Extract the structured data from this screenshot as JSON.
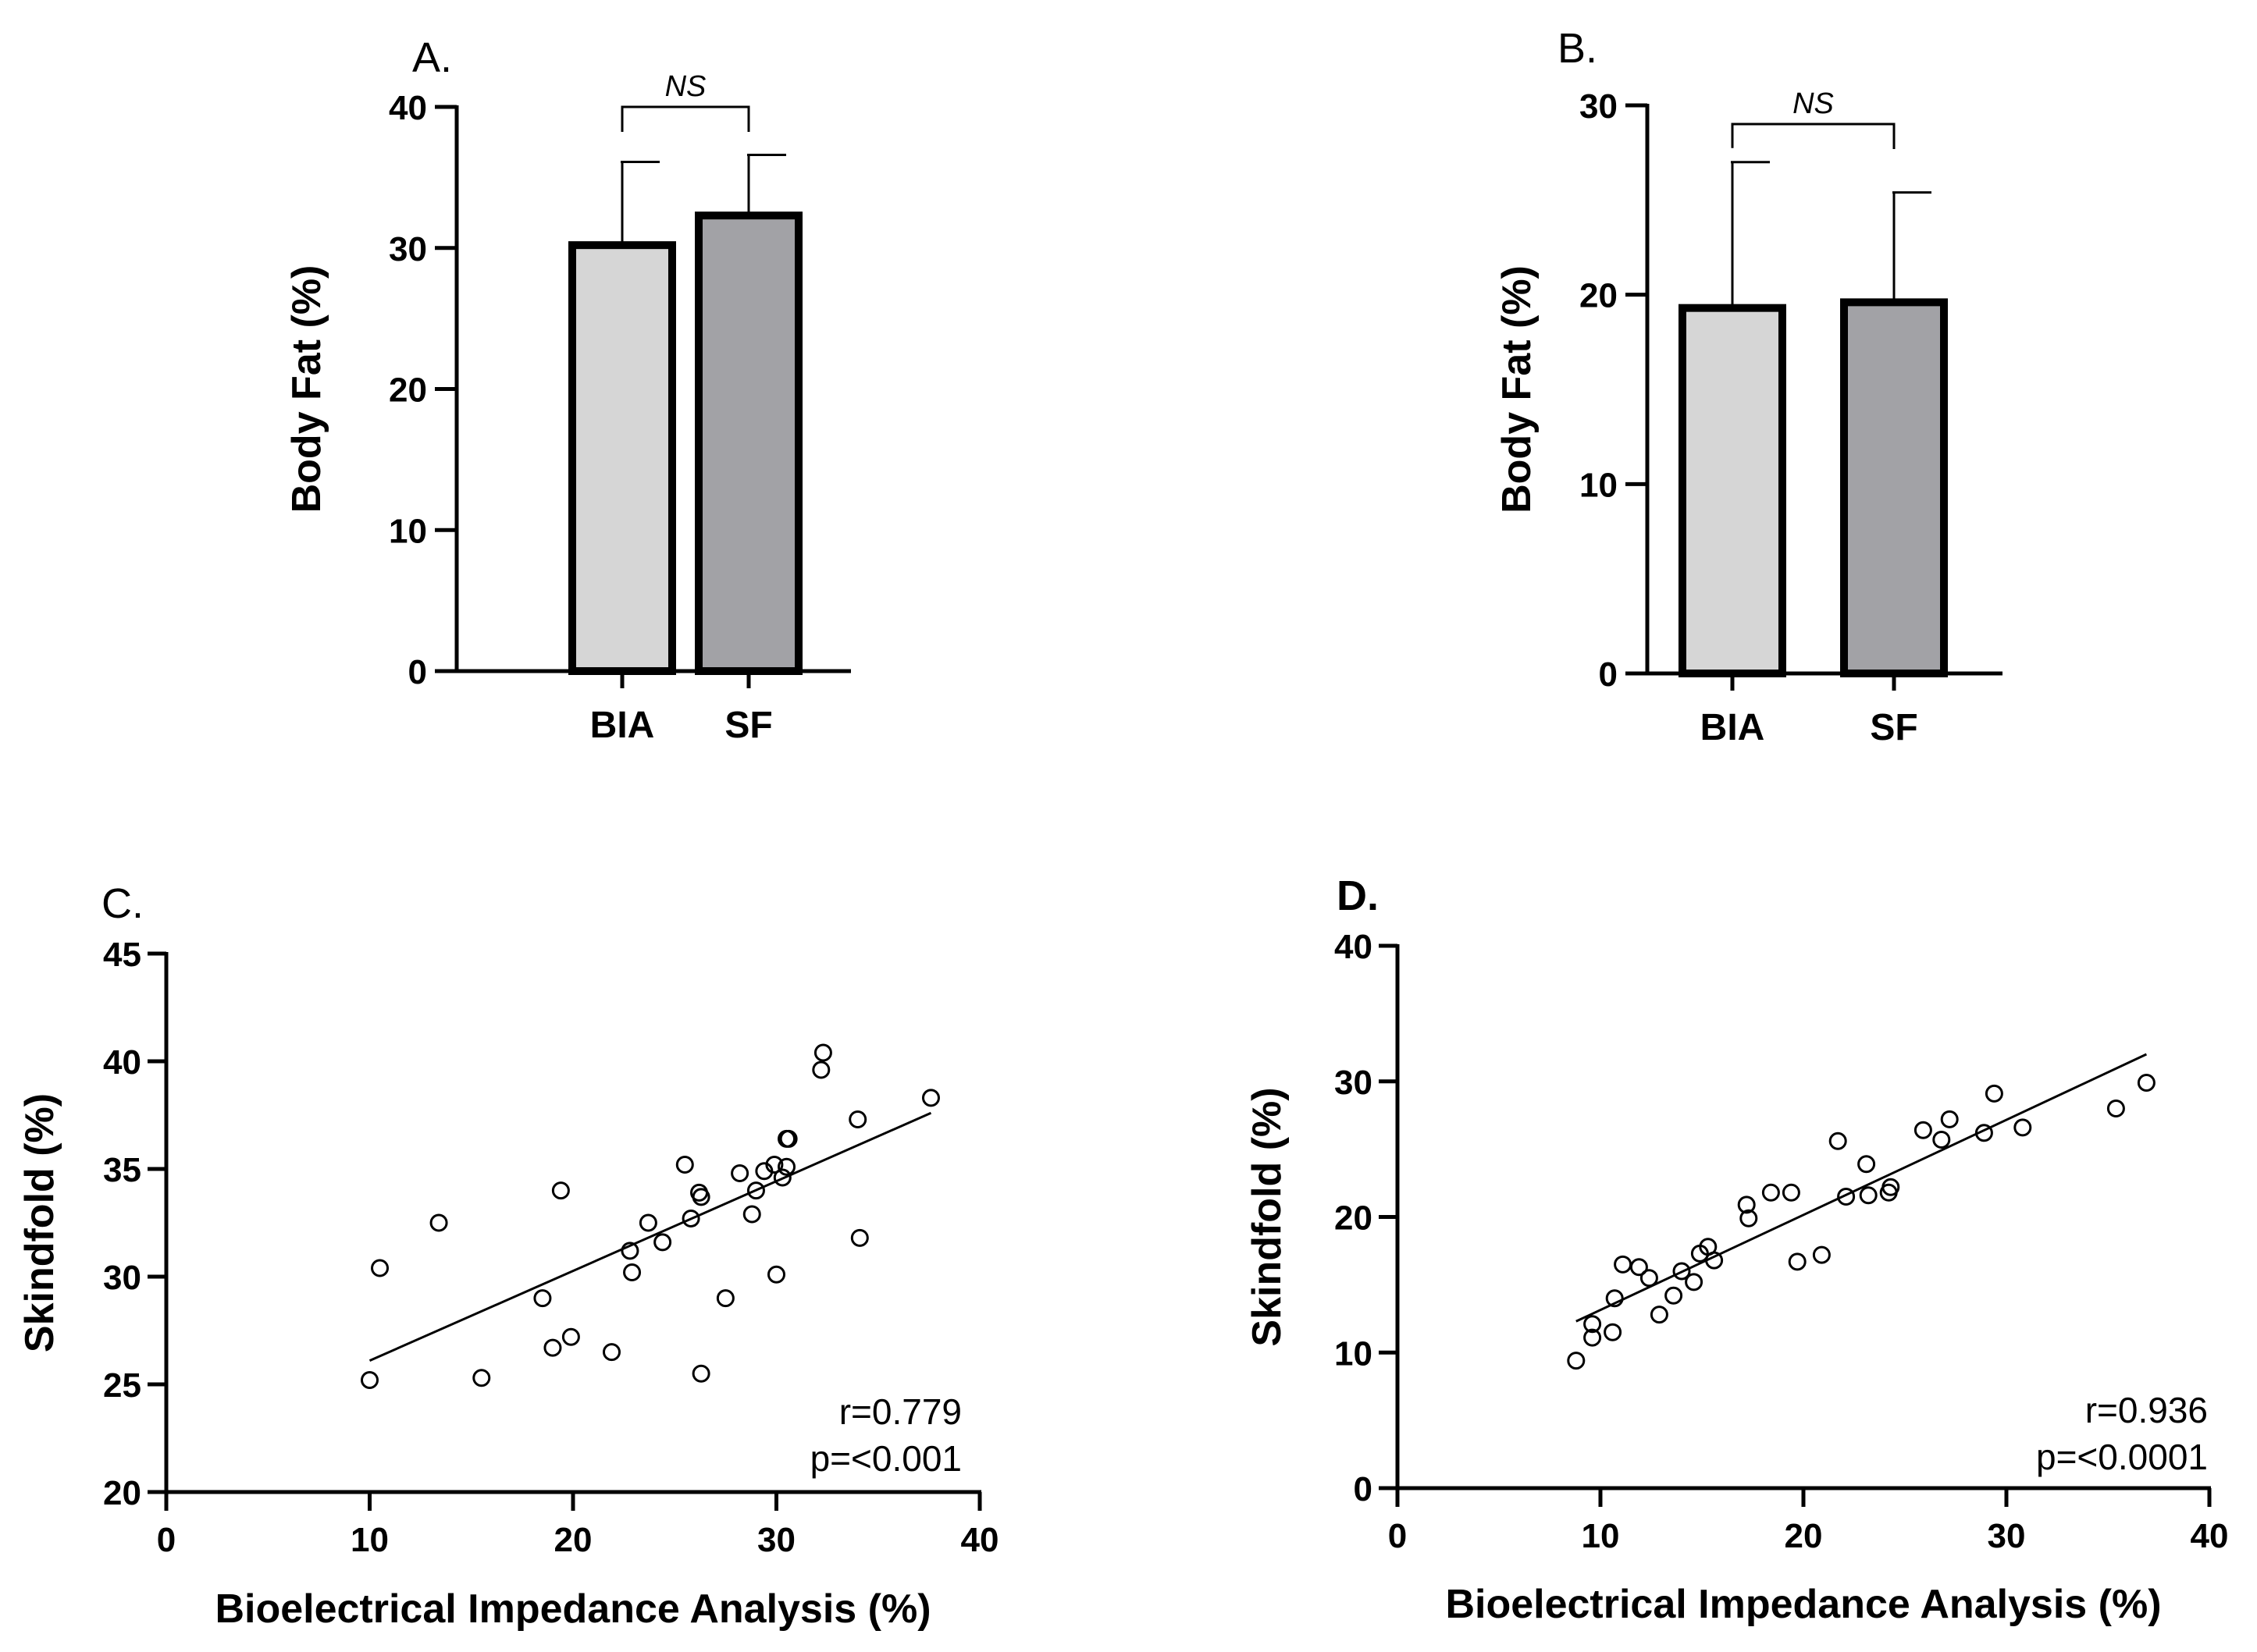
{
  "chart_data": [
    {
      "panel": "A.",
      "type": "bar",
      "categories": [
        "BIA",
        "SF"
      ],
      "values": [
        30.2,
        32.3
      ],
      "errors": [
        5.9,
        4.3
      ],
      "fill_colors": [
        "#d6d6d6",
        "#a2a2a6"
      ],
      "ylabel": "Body Fat (%)",
      "xlabel": "",
      "ylim": [
        0,
        40
      ],
      "yticks": [
        0,
        10,
        20,
        30,
        40
      ],
      "significance": "NS"
    },
    {
      "panel": "B.",
      "type": "bar",
      "categories": [
        "BIA",
        "SF"
      ],
      "values": [
        19.3,
        19.6
      ],
      "errors": [
        7.7,
        5.8
      ],
      "fill_colors": [
        "#d6d6d6",
        "#a2a2a6"
      ],
      "ylabel": "Body Fat (%)",
      "xlabel": "",
      "ylim": [
        0,
        30
      ],
      "yticks": [
        0,
        10,
        20,
        30
      ],
      "significance": "NS"
    },
    {
      "panel": "C.",
      "type": "scatter",
      "xlabel": "Bioelectrical Impedance Analysis (%)",
      "ylabel": "Skindfold (%)",
      "xlim": [
        0,
        40
      ],
      "ylim": [
        20,
        45
      ],
      "xticks": [
        0,
        10,
        20,
        30,
        40
      ],
      "yticks": [
        20,
        25,
        30,
        35,
        40,
        45
      ],
      "points": [
        [
          10.0,
          25.2
        ],
        [
          10.5,
          30.4
        ],
        [
          13.4,
          32.5
        ],
        [
          15.5,
          25.3
        ],
        [
          18.5,
          29.0
        ],
        [
          19.0,
          26.7
        ],
        [
          19.4,
          34.0
        ],
        [
          19.9,
          27.2
        ],
        [
          21.9,
          26.5
        ],
        [
          22.8,
          31.2
        ],
        [
          22.9,
          30.2
        ],
        [
          23.7,
          32.5
        ],
        [
          24.4,
          31.6
        ],
        [
          25.5,
          35.2
        ],
        [
          25.8,
          32.7
        ],
        [
          26.2,
          33.9
        ],
        [
          26.3,
          25.5
        ],
        [
          26.3,
          33.7
        ],
        [
          27.5,
          29.0
        ],
        [
          28.2,
          34.8
        ],
        [
          28.8,
          32.9
        ],
        [
          29.0,
          34.0
        ],
        [
          29.4,
          34.9
        ],
        [
          29.9,
          35.2
        ],
        [
          30.0,
          30.1
        ],
        [
          30.3,
          34.6
        ],
        [
          30.5,
          35.1
        ],
        [
          30.5,
          36.4
        ],
        [
          30.6,
          36.4
        ],
        [
          32.2,
          39.6
        ],
        [
          32.3,
          40.4
        ],
        [
          34.0,
          37.3
        ],
        [
          34.1,
          31.8
        ],
        [
          37.6,
          38.3
        ]
      ],
      "fit_line": {
        "x": [
          10.0,
          37.6
        ],
        "y": [
          26.1,
          37.6
        ]
      },
      "stats": [
        "r=0.779",
        "p=<0.001"
      ]
    },
    {
      "panel": "D.",
      "type": "scatter",
      "xlabel": "Bioelectrical Impedance Analysis (%)",
      "ylabel": "Skindfold (%)",
      "xlim": [
        0,
        40
      ],
      "ylim": [
        0,
        40
      ],
      "xticks": [
        0,
        10,
        20,
        30,
        40
      ],
      "yticks": [
        0,
        10,
        20,
        30,
        40
      ],
      "points": [
        [
          8.8,
          9.4
        ],
        [
          9.6,
          11.1
        ],
        [
          9.6,
          12.1
        ],
        [
          10.6,
          11.5
        ],
        [
          10.7,
          14.0
        ],
        [
          11.1,
          16.5
        ],
        [
          11.9,
          16.3
        ],
        [
          12.4,
          15.5
        ],
        [
          12.9,
          12.8
        ],
        [
          13.6,
          14.2
        ],
        [
          14.0,
          16.0
        ],
        [
          14.6,
          15.2
        ],
        [
          14.9,
          17.3
        ],
        [
          15.3,
          17.8
        ],
        [
          15.6,
          16.8
        ],
        [
          17.2,
          20.9
        ],
        [
          17.3,
          19.9
        ],
        [
          18.4,
          21.8
        ],
        [
          19.4,
          21.8
        ],
        [
          19.7,
          16.7
        ],
        [
          20.9,
          17.2
        ],
        [
          21.7,
          25.6
        ],
        [
          22.1,
          21.5
        ],
        [
          23.1,
          23.9
        ],
        [
          23.2,
          21.6
        ],
        [
          24.2,
          21.8
        ],
        [
          24.3,
          22.2
        ],
        [
          25.9,
          26.4
        ],
        [
          26.8,
          25.7
        ],
        [
          27.2,
          27.2
        ],
        [
          28.9,
          26.2
        ],
        [
          29.4,
          29.1
        ],
        [
          30.8,
          26.6
        ],
        [
          35.4,
          28.0
        ],
        [
          36.9,
          29.9
        ]
      ],
      "fit_line": {
        "x": [
          8.8,
          36.9
        ],
        "y": [
          12.3,
          32.0
        ]
      },
      "stats": [
        "r=0.936",
        "p=<0.0001"
      ]
    }
  ]
}
